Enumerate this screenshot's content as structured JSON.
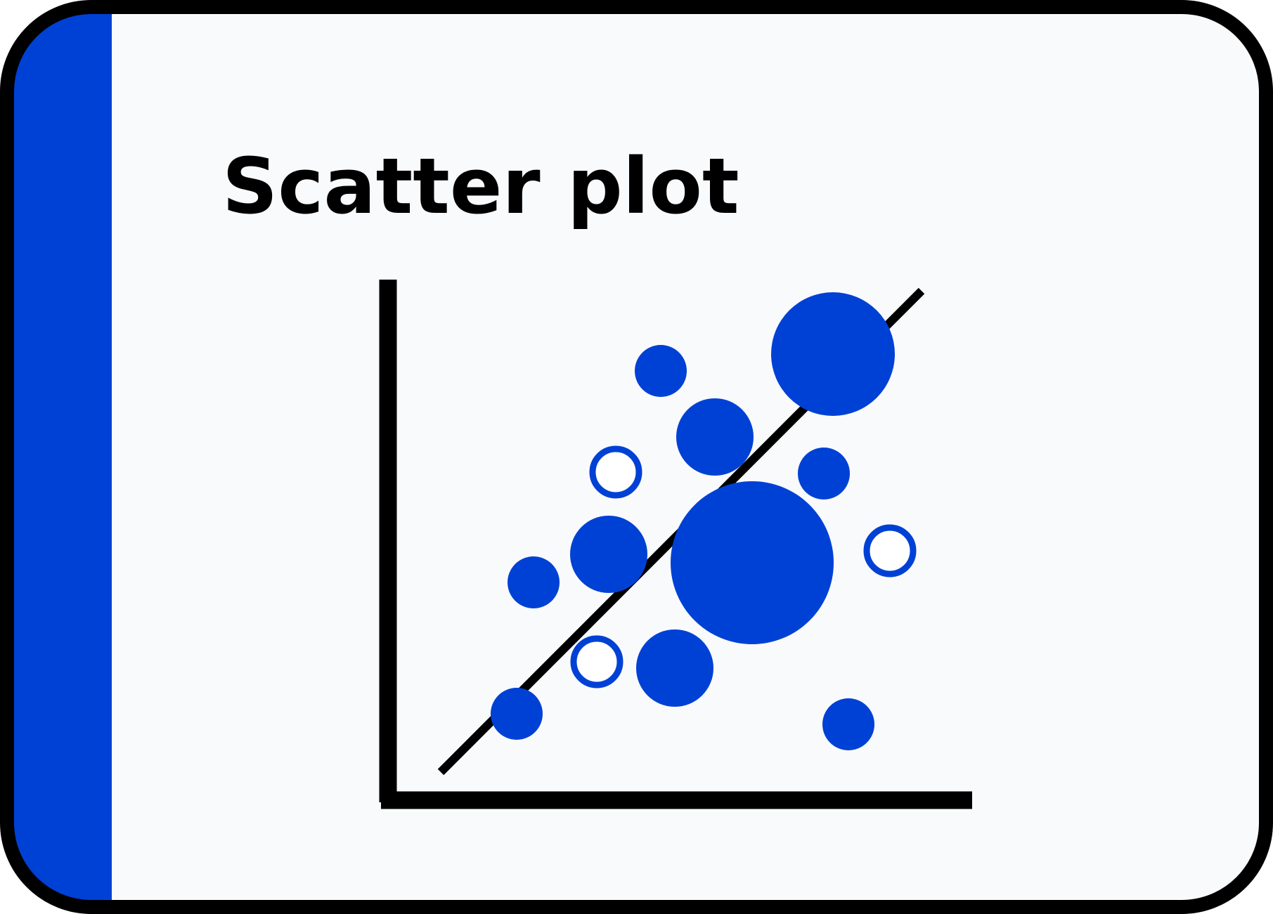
{
  "card": {
    "title": "Scatter plot",
    "background_color": "#F9FAFC",
    "border_color": "#000000",
    "accent_color": "#0041D5"
  },
  "illustration": {
    "axes_color": "#000000",
    "trend_line_color": "#000000",
    "marker_color": "#0041D5",
    "markers": [
      {
        "kind": "filled",
        "size": "small"
      },
      {
        "kind": "filled",
        "size": "large"
      },
      {
        "kind": "filled",
        "size": "medium"
      },
      {
        "kind": "hollow",
        "size": "small"
      },
      {
        "kind": "filled",
        "size": "small"
      },
      {
        "kind": "filled",
        "size": "medium"
      },
      {
        "kind": "filled",
        "size": "extra-large"
      },
      {
        "kind": "hollow",
        "size": "small"
      },
      {
        "kind": "filled",
        "size": "small"
      },
      {
        "kind": "hollow",
        "size": "small"
      },
      {
        "kind": "filled",
        "size": "medium"
      },
      {
        "kind": "filled",
        "size": "small"
      },
      {
        "kind": "filled",
        "size": "small"
      }
    ]
  }
}
